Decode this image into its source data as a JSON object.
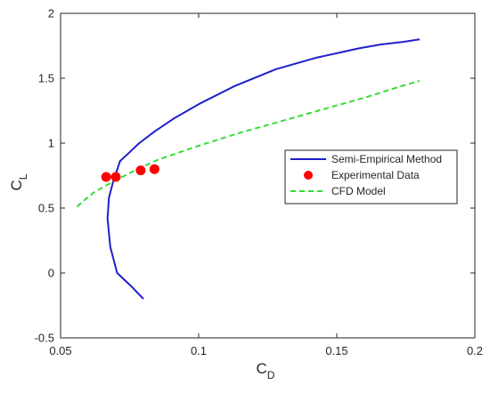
{
  "chart_data": {
    "type": "line",
    "title": "",
    "xlabel": {
      "main": "C",
      "sub": "D"
    },
    "ylabel": {
      "main": "C",
      "sub": "L"
    },
    "xlim": [
      0.05,
      0.2
    ],
    "ylim": [
      -0.5,
      2
    ],
    "xticks": [
      0.05,
      0.1,
      0.15,
      0.2
    ],
    "xtick_labels": [
      "0.05",
      "0.1",
      "0.15",
      "0.2"
    ],
    "yticks": [
      -0.5,
      0,
      0.5,
      1,
      1.5,
      2
    ],
    "ytick_labels": [
      "-0.5",
      "0",
      "0.5",
      "1",
      "1.5",
      "2"
    ],
    "grid": false,
    "legend_position": "center-right",
    "series": [
      {
        "name": "Semi-Empirical Method",
        "style": "solid-line",
        "color": "#1f1fcc",
        "x": [
          0.08,
          0.0755,
          0.0705,
          0.068,
          0.067,
          0.0675,
          0.069,
          0.0715,
          0.0745,
          0.0785,
          0.084,
          0.091,
          0.1,
          0.113,
          0.128,
          0.143,
          0.158,
          0.166,
          0.174,
          0.18
        ],
        "y": [
          -0.2,
          -0.1,
          0.0,
          0.2,
          0.42,
          0.58,
          0.7,
          0.86,
          0.92,
          1.0,
          1.09,
          1.19,
          1.3,
          1.44,
          1.57,
          1.66,
          1.73,
          1.76,
          1.78,
          1.8
        ]
      },
      {
        "name": "Experimental Data",
        "style": "marker",
        "color": "#ff0000",
        "x": [
          0.0665,
          0.07,
          0.079,
          0.084
        ],
        "y": [
          0.74,
          0.74,
          0.79,
          0.8
        ]
      },
      {
        "name": "CFD Model",
        "style": "dashed-line",
        "color": "#33dd33",
        "x": [
          0.056,
          0.058,
          0.062,
          0.067,
          0.075,
          0.085,
          0.1,
          0.115,
          0.13,
          0.145,
          0.16,
          0.172,
          0.18
        ],
        "y": [
          0.51,
          0.55,
          0.62,
          0.68,
          0.77,
          0.87,
          0.98,
          1.08,
          1.17,
          1.26,
          1.35,
          1.43,
          1.48
        ]
      }
    ]
  }
}
